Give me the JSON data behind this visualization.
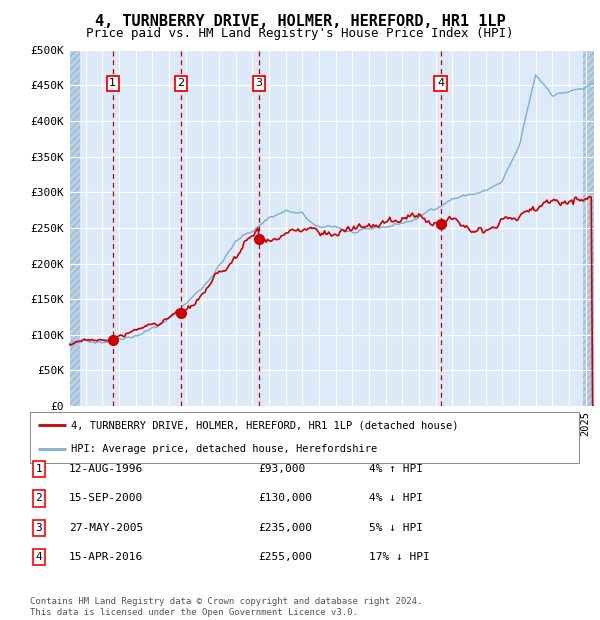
{
  "title": "4, TURNBERRY DRIVE, HOLMER, HEREFORD, HR1 1LP",
  "subtitle": "Price paid vs. HM Land Registry's House Price Index (HPI)",
  "ylim": [
    0,
    500000
  ],
  "yticks": [
    0,
    50000,
    100000,
    150000,
    200000,
    250000,
    300000,
    350000,
    400000,
    450000,
    500000
  ],
  "ytick_labels": [
    "£0",
    "£50K",
    "£100K",
    "£150K",
    "£200K",
    "£250K",
    "£300K",
    "£350K",
    "£400K",
    "£450K",
    "£500K"
  ],
  "xlim_start": 1994.0,
  "xlim_end": 2025.5,
  "plot_bg_color": "#dce9f8",
  "hatch_color": "#b8cfe8",
  "grid_color": "#ffffff",
  "red_line_color": "#cc0000",
  "blue_line_color": "#7ab0d4",
  "sale_marker_color": "#cc0000",
  "dashed_line_color": "#cc0000",
  "transactions": [
    {
      "num": 1,
      "date_str": "12-AUG-1996",
      "date_x": 1996.62,
      "price": 93000,
      "pct": "4%",
      "dir": "↑"
    },
    {
      "num": 2,
      "date_str": "15-SEP-2000",
      "date_x": 2000.71,
      "price": 130000,
      "pct": "4%",
      "dir": "↓"
    },
    {
      "num": 3,
      "date_str": "27-MAY-2005",
      "date_x": 2005.4,
      "price": 235000,
      "pct": "5%",
      "dir": "↓"
    },
    {
      "num": 4,
      "date_str": "15-APR-2016",
      "date_x": 2016.29,
      "price": 255000,
      "pct": "17%",
      "dir": "↓"
    }
  ],
  "legend_red_label": "4, TURNBERRY DRIVE, HOLMER, HEREFORD, HR1 1LP (detached house)",
  "legend_blue_label": "HPI: Average price, detached house, Herefordshire",
  "footer": "Contains HM Land Registry data © Crown copyright and database right 2024.\nThis data is licensed under the Open Government Licence v3.0.",
  "title_fontsize": 11,
  "subtitle_fontsize": 9,
  "tick_fontsize": 8,
  "legend_fontsize": 7.5,
  "table_fontsize": 8,
  "footer_fontsize": 6.5,
  "hpi_breakpoints": [
    1994,
    1996,
    1998,
    2000,
    2002,
    2004,
    2005,
    2006,
    2007,
    2008,
    2009,
    2010,
    2011,
    2012,
    2013,
    2014,
    2015,
    2016,
    2017,
    2018,
    2019,
    2020,
    2021,
    2022,
    2023,
    2024,
    2025.5
  ],
  "hpi_values": [
    87000,
    93000,
    108000,
    130000,
    175000,
    240000,
    255000,
    275000,
    285000,
    278000,
    255000,
    258000,
    250000,
    248000,
    252000,
    258000,
    265000,
    280000,
    295000,
    300000,
    305000,
    315000,
    360000,
    460000,
    435000,
    440000,
    445000
  ],
  "price_breakpoints": [
    1994,
    1996.62,
    2000.71,
    2005.4,
    2016.29,
    2025.4
  ],
  "price_values": [
    87000,
    93000,
    130000,
    235000,
    255000,
    355000
  ]
}
